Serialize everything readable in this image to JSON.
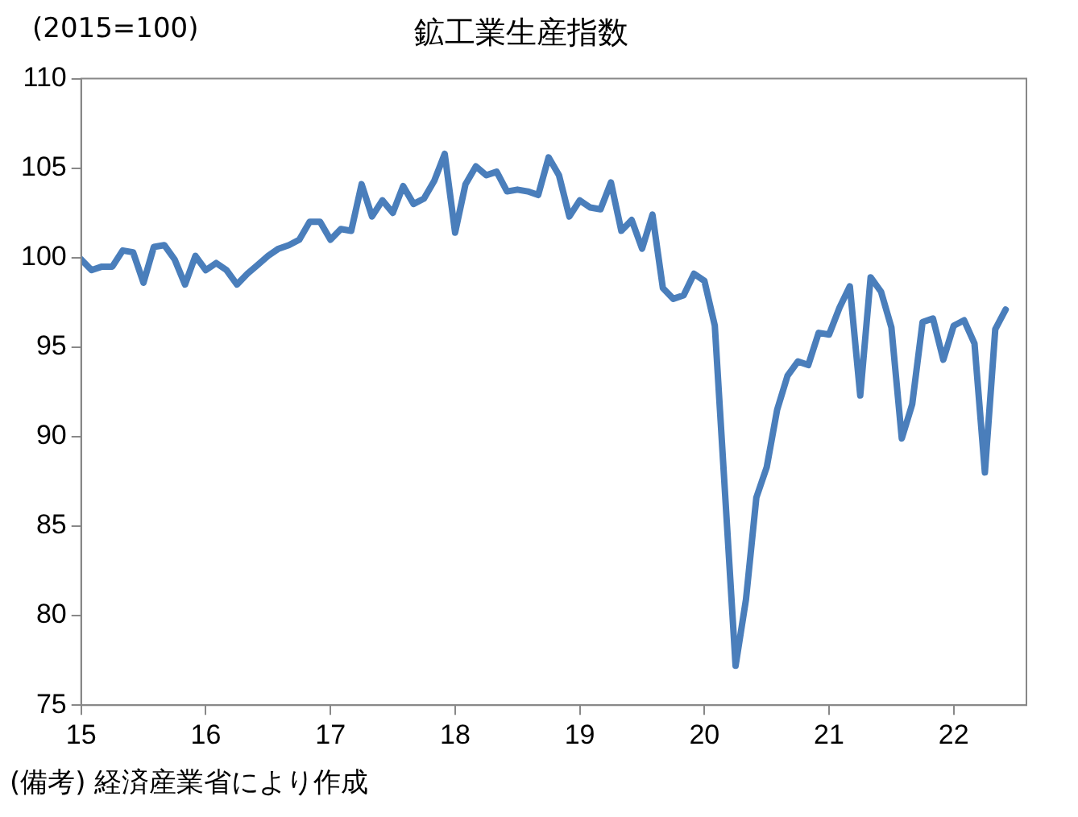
{
  "chart_data": {
    "type": "line",
    "title": "鉱工業生産指数",
    "ylabel": "(2015=100)",
    "annotations": [
      "(備考) 経済産業省により作成"
    ],
    "x": [
      "2015-01",
      "2015-02",
      "2015-03",
      "2015-04",
      "2015-05",
      "2015-06",
      "2015-07",
      "2015-08",
      "2015-09",
      "2015-10",
      "2015-11",
      "2015-12",
      "2016-01",
      "2016-02",
      "2016-03",
      "2016-04",
      "2016-05",
      "2016-06",
      "2016-07",
      "2016-08",
      "2016-09",
      "2016-10",
      "2016-11",
      "2016-12",
      "2017-01",
      "2017-02",
      "2017-03",
      "2017-04",
      "2017-05",
      "2017-06",
      "2017-07",
      "2017-08",
      "2017-09",
      "2017-10",
      "2017-11",
      "2017-12",
      "2018-01",
      "2018-02",
      "2018-03",
      "2018-04",
      "2018-05",
      "2018-06",
      "2018-07",
      "2018-08",
      "2018-09",
      "2018-10",
      "2018-11",
      "2018-12",
      "2019-01",
      "2019-02",
      "2019-03",
      "2019-04",
      "2019-05",
      "2019-06",
      "2019-07",
      "2019-08",
      "2019-09",
      "2019-10",
      "2019-11",
      "2019-12",
      "2020-01",
      "2020-02",
      "2020-03",
      "2020-04",
      "2020-05",
      "2020-06",
      "2020-07",
      "2020-08",
      "2020-09",
      "2020-10",
      "2020-11",
      "2020-12",
      "2021-01",
      "2021-02",
      "2021-03",
      "2021-04",
      "2021-05",
      "2021-06",
      "2021-07",
      "2021-08",
      "2021-09",
      "2021-10",
      "2021-11",
      "2021-12",
      "2022-01",
      "2022-02",
      "2022-03",
      "2022-04",
      "2022-05",
      "2022-06"
    ],
    "series": [
      {
        "color": "#4a7ebb",
        "values": [
          99.9,
          99.3,
          99.5,
          99.5,
          100.4,
          100.3,
          98.6,
          100.6,
          100.7,
          99.9,
          98.5,
          100.1,
          99.3,
          99.7,
          99.3,
          98.5,
          99.1,
          99.6,
          100.1,
          100.5,
          100.7,
          101.0,
          102.0,
          102.0,
          101.0,
          101.6,
          101.5,
          104.1,
          102.3,
          103.2,
          102.5,
          104.0,
          103.0,
          103.3,
          104.3,
          105.8,
          101.4,
          104.1,
          105.1,
          104.6,
          104.8,
          103.7,
          103.8,
          103.7,
          103.5,
          105.6,
          104.6,
          102.3,
          103.2,
          102.8,
          102.7,
          104.2,
          101.5,
          102.1,
          100.5,
          102.4,
          98.3,
          97.7,
          97.9,
          99.1,
          98.7,
          96.2,
          86.7,
          77.2,
          80.9,
          86.6,
          88.3,
          91.5,
          93.4,
          94.2,
          94.0,
          95.8,
          95.7,
          97.2,
          98.4,
          92.3,
          98.9,
          98.1,
          96.1,
          89.9,
          91.8,
          96.4,
          96.6,
          94.3,
          96.2,
          96.5,
          95.2,
          88.0,
          96.0,
          97.1
        ]
      }
    ],
    "xlim": [
      "2015-01",
      "2022-08"
    ],
    "xticks": [
      {
        "value": "2015-01",
        "label": "15"
      },
      {
        "value": "2016-01",
        "label": "16"
      },
      {
        "value": "2017-01",
        "label": "17"
      },
      {
        "value": "2018-01",
        "label": "18"
      },
      {
        "value": "2019-01",
        "label": "19"
      },
      {
        "value": "2020-01",
        "label": "20"
      },
      {
        "value": "2021-01",
        "label": "21"
      },
      {
        "value": "2022-01",
        "label": "22"
      }
    ],
    "ylim": [
      75,
      110
    ],
    "yticks": [
      75,
      80,
      85,
      90,
      95,
      100,
      105,
      110
    ],
    "grid": false,
    "legend": false,
    "marker": "none",
    "line_style": "solid"
  }
}
